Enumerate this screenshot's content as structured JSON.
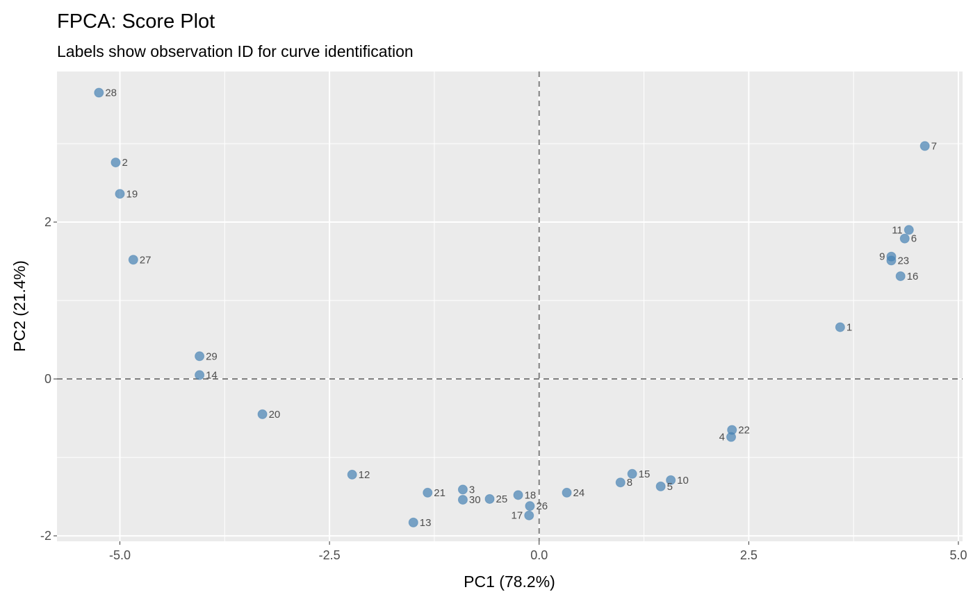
{
  "chart_data": {
    "type": "scatter",
    "title": "FPCA: Score Plot",
    "subtitle": "Labels show observation ID for curve identification",
    "xlabel": "PC1 (78.2%)",
    "ylabel": "PC2 (21.4%)",
    "xlim": [
      -5.75,
      5.05
    ],
    "ylim": [
      -2.07,
      3.92
    ],
    "xticks": [
      -5.0,
      -2.5,
      0.0,
      2.5,
      5.0
    ],
    "xtick_labels": [
      "-5.0",
      "-2.5",
      "0.0",
      "2.5",
      "5.0"
    ],
    "yticks": [
      -2,
      0,
      2
    ],
    "ytick_labels": [
      "-2",
      "0",
      "2"
    ],
    "grid": true,
    "reference_lines": {
      "x": 0,
      "y": 0,
      "style": "dashed"
    },
    "point_color": "#4682b4",
    "background": "#ebebeb",
    "points": [
      {
        "id": "28",
        "x": -5.25,
        "y": 3.65
      },
      {
        "id": "2",
        "x": -5.05,
        "y": 2.76
      },
      {
        "id": "19",
        "x": -5.0,
        "y": 2.36
      },
      {
        "id": "27",
        "x": -4.84,
        "y": 1.52
      },
      {
        "id": "29",
        "x": -4.05,
        "y": 0.29
      },
      {
        "id": "14",
        "x": -4.05,
        "y": 0.05
      },
      {
        "id": "20",
        "x": -3.3,
        "y": -0.45
      },
      {
        "id": "12",
        "x": -2.23,
        "y": -1.22
      },
      {
        "id": "21",
        "x": -1.33,
        "y": -1.45
      },
      {
        "id": "3",
        "x": -0.91,
        "y": -1.41
      },
      {
        "id": "30",
        "x": -0.91,
        "y": -1.54
      },
      {
        "id": "13",
        "x": -1.5,
        "y": -1.83
      },
      {
        "id": "25",
        "x": -0.59,
        "y": -1.53
      },
      {
        "id": "18",
        "x": -0.25,
        "y": -1.48
      },
      {
        "id": "26",
        "x": -0.11,
        "y": -1.62
      },
      {
        "id": "17",
        "x": -0.12,
        "y": -1.74
      },
      {
        "id": "24",
        "x": 0.33,
        "y": -1.45
      },
      {
        "id": "8",
        "x": 0.97,
        "y": -1.32
      },
      {
        "id": "15",
        "x": 1.11,
        "y": -1.21
      },
      {
        "id": "5",
        "x": 1.45,
        "y": -1.37
      },
      {
        "id": "10",
        "x": 1.57,
        "y": -1.29
      },
      {
        "id": "22",
        "x": 2.3,
        "y": -0.65
      },
      {
        "id": "4",
        "x": 2.29,
        "y": -0.74
      },
      {
        "id": "1",
        "x": 3.59,
        "y": 0.66
      },
      {
        "id": "16",
        "x": 4.31,
        "y": 1.31
      },
      {
        "id": "23",
        "x": 4.2,
        "y": 1.51
      },
      {
        "id": "9",
        "x": 4.2,
        "y": 1.56
      },
      {
        "id": "6",
        "x": 4.36,
        "y": 1.79
      },
      {
        "id": "11",
        "x": 4.41,
        "y": 1.9
      },
      {
        "id": "7",
        "x": 4.6,
        "y": 2.97
      }
    ]
  }
}
